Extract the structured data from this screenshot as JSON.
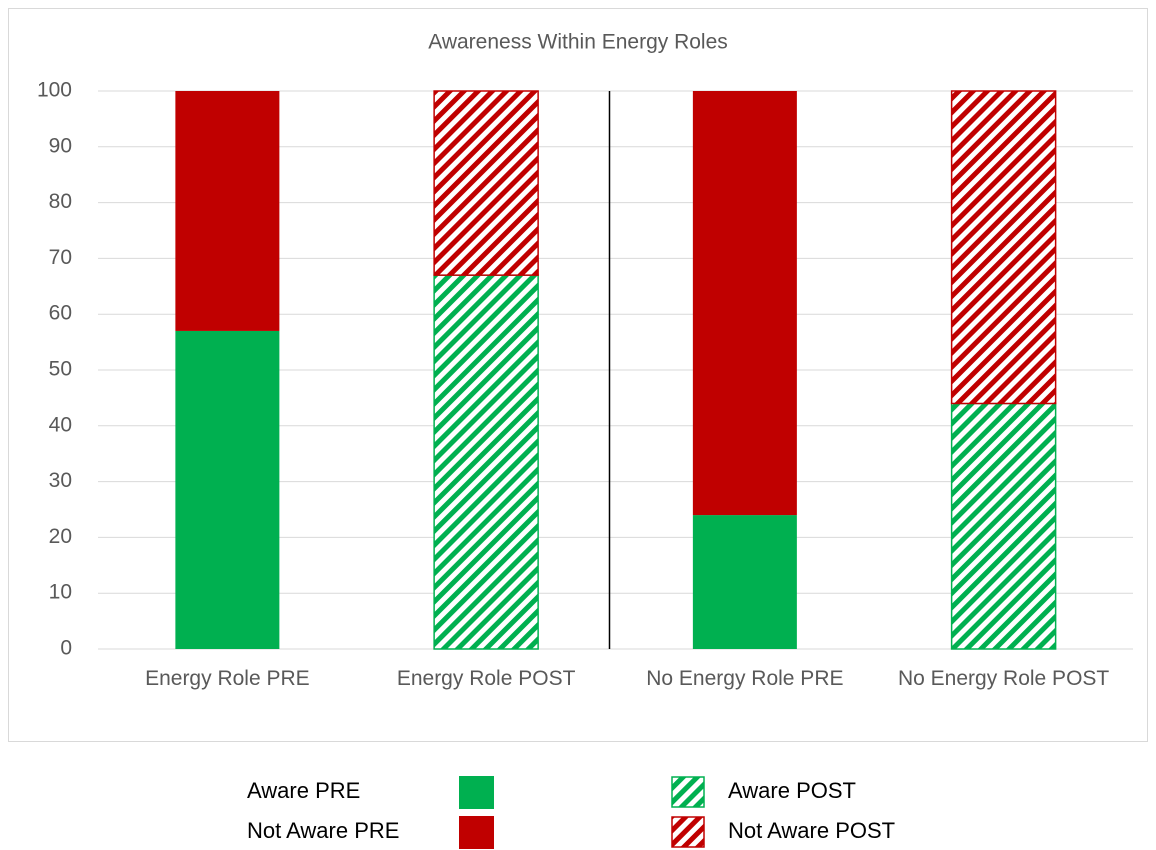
{
  "chart_data": {
    "type": "stacked_bar",
    "title": "Awareness Within Energy Roles",
    "categories": [
      "Energy Role PRE",
      "Energy Role POST",
      "No Energy Role PRE",
      "No Energy Role POST"
    ],
    "series": [
      {
        "name": "Aware PRE",
        "color": "#00b050",
        "hatch": false,
        "values": [
          57,
          null,
          24,
          null
        ]
      },
      {
        "name": "Not Aware PRE",
        "color": "#c00000",
        "hatch": false,
        "values": [
          43,
          null,
          76,
          null
        ]
      },
      {
        "name": "Aware POST",
        "color": "#00b050",
        "hatch": true,
        "values": [
          null,
          67,
          null,
          44
        ]
      },
      {
        "name": "Not Aware POST",
        "color": "#c00000",
        "hatch": true,
        "values": [
          null,
          33,
          null,
          56
        ]
      }
    ],
    "ylim": [
      0,
      100
    ],
    "yticks": [
      0,
      10,
      20,
      30,
      40,
      50,
      60,
      70,
      80,
      90,
      100
    ],
    "grid": true
  }
}
